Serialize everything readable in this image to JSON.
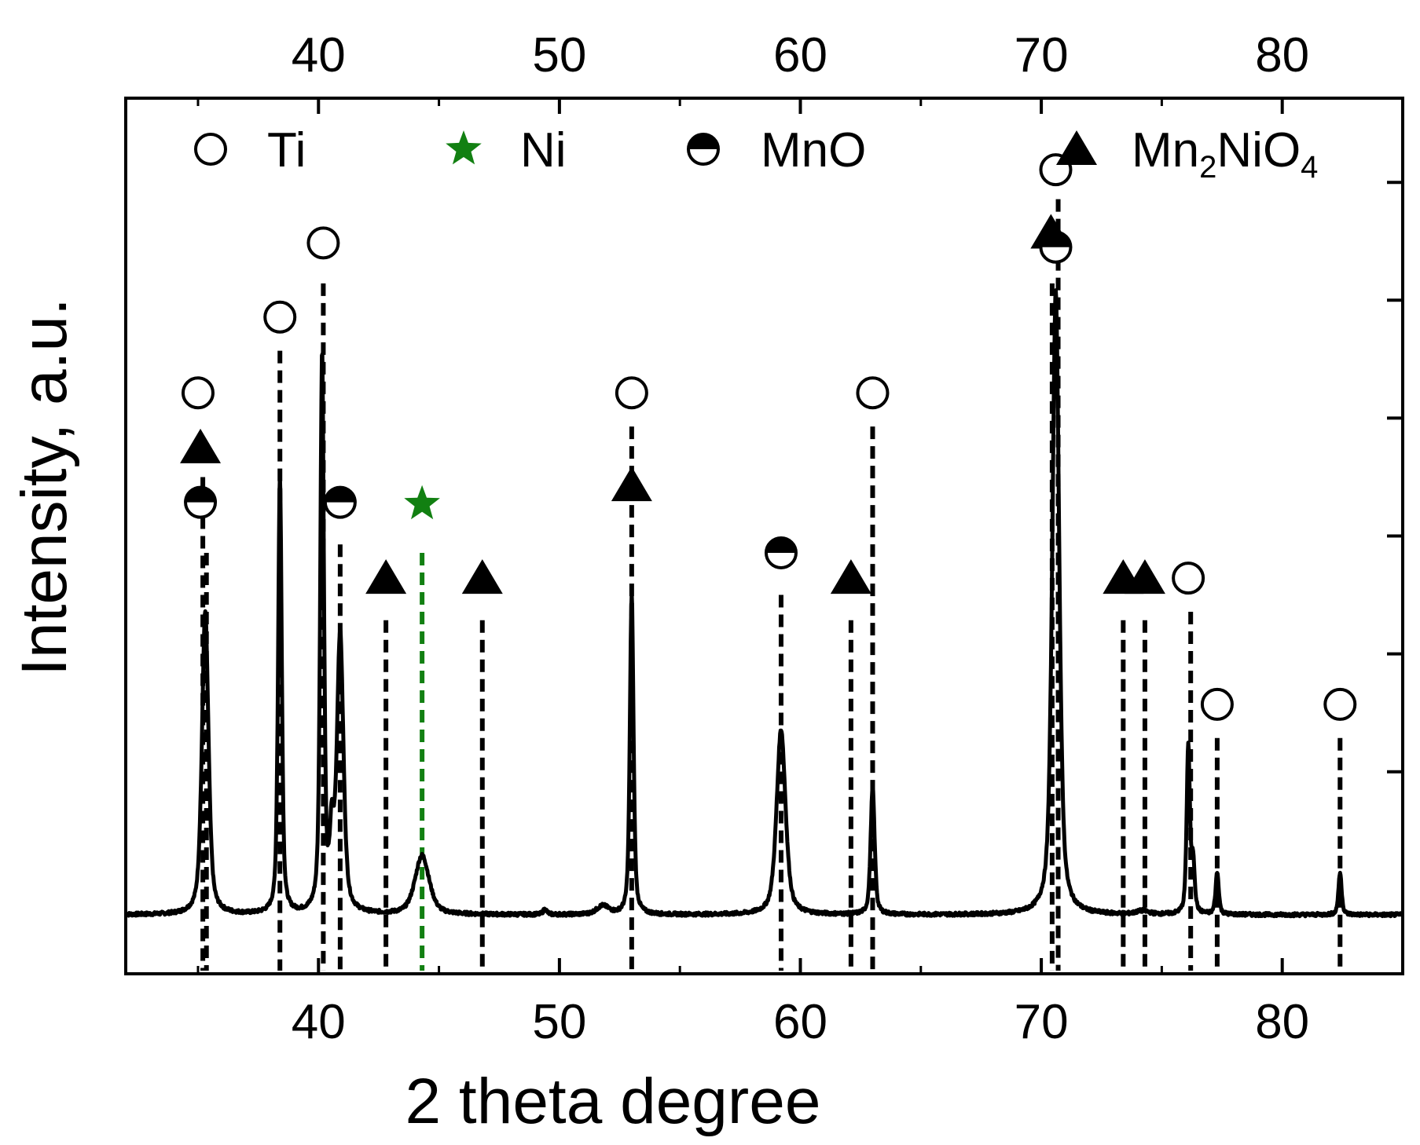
{
  "chart_data": {
    "type": "line",
    "title": "",
    "xlabel": "2 theta degree",
    "ylabel": "Intensity, a.u.",
    "xlim": [
      32,
      85
    ],
    "ylim": [
      -0.04,
      1.0
    ],
    "x_ticks": [
      40,
      50,
      60,
      70,
      80
    ],
    "x_tick_labels": [
      "40",
      "50",
      "60",
      "70",
      "80"
    ],
    "y_minor_ticks": [
      0.2,
      0.34,
      0.48,
      0.62,
      0.76,
      0.9
    ],
    "line_color": "#000000",
    "baseline": 0.03,
    "peaks": [
      {
        "x": 35.3,
        "h": 0.36,
        "w": 0.16
      },
      {
        "x": 38.4,
        "h": 0.52,
        "w": 0.09
      },
      {
        "x": 40.15,
        "h": 0.66,
        "w": 0.09
      },
      {
        "x": 40.55,
        "h": 0.08,
        "w": 0.1
      },
      {
        "x": 40.9,
        "h": 0.33,
        "w": 0.16
      },
      {
        "x": 44.3,
        "h": 0.07,
        "w": 0.35
      },
      {
        "x": 49.4,
        "h": 0.006,
        "w": 0.1
      },
      {
        "x": 51.8,
        "h": 0.01,
        "w": 0.3
      },
      {
        "x": 53.0,
        "h": 0.38,
        "w": 0.09
      },
      {
        "x": 59.2,
        "h": 0.22,
        "w": 0.22
      },
      {
        "x": 63.0,
        "h": 0.15,
        "w": 0.1
      },
      {
        "x": 70.6,
        "h": 0.74,
        "w": 0.17
      },
      {
        "x": 74.2,
        "h": 0.004,
        "w": 0.3
      },
      {
        "x": 76.1,
        "h": 0.2,
        "w": 0.08
      },
      {
        "x": 76.3,
        "h": 0.06,
        "w": 0.08
      },
      {
        "x": 77.3,
        "h": 0.05,
        "w": 0.08
      },
      {
        "x": 82.4,
        "h": 0.05,
        "w": 0.08
      }
    ],
    "legend": [
      {
        "symbol": "circle-open",
        "label": "Ti",
        "color": "#000000"
      },
      {
        "symbol": "star",
        "label": "Ni",
        "color": "#128012"
      },
      {
        "symbol": "circle-half",
        "label": "MnO",
        "color": "#000000"
      },
      {
        "symbol": "triangle",
        "label": "Mn",
        "sub1": "2",
        "mid": "NiO",
        "sub2": "4",
        "color": "#000000"
      }
    ],
    "reference_lines": [
      {
        "x": 35.2,
        "top": 0.55,
        "color": "#000000"
      },
      {
        "x": 35.35,
        "top": 0.46,
        "color": "#000000"
      },
      {
        "x": 38.4,
        "top": 0.7,
        "color": "#000000"
      },
      {
        "x": 40.2,
        "top": 0.78,
        "color": "#000000"
      },
      {
        "x": 40.9,
        "top": 0.47,
        "color": "#000000"
      },
      {
        "x": 42.8,
        "top": 0.38,
        "color": "#000000"
      },
      {
        "x": 44.3,
        "top": 0.46,
        "color": "#128012"
      },
      {
        "x": 46.8,
        "top": 0.38,
        "color": "#000000"
      },
      {
        "x": 53.0,
        "top": 0.61,
        "color": "#000000"
      },
      {
        "x": 59.2,
        "top": 0.41,
        "color": "#000000"
      },
      {
        "x": 62.1,
        "top": 0.38,
        "color": "#000000"
      },
      {
        "x": 63.0,
        "top": 0.61,
        "color": "#000000"
      },
      {
        "x": 70.45,
        "top": 0.78,
        "color": "#000000"
      },
      {
        "x": 70.7,
        "top": 0.88,
        "color": "#000000"
      },
      {
        "x": 73.4,
        "top": 0.38,
        "color": "#000000"
      },
      {
        "x": 74.3,
        "top": 0.38,
        "color": "#000000"
      },
      {
        "x": 76.2,
        "top": 0.39,
        "color": "#000000"
      },
      {
        "x": 77.3,
        "top": 0.24,
        "color": "#000000"
      },
      {
        "x": 82.4,
        "top": 0.24,
        "color": "#000000"
      }
    ],
    "markers": [
      {
        "x": 35.0,
        "y": 0.65,
        "symbol": "circle-open"
      },
      {
        "x": 35.1,
        "y": 0.52,
        "symbol": "circle-half"
      },
      {
        "x": 35.1,
        "y": 0.585,
        "symbol": "triangle"
      },
      {
        "x": 38.4,
        "y": 0.74,
        "symbol": "circle-open"
      },
      {
        "x": 40.2,
        "y": 0.828,
        "symbol": "circle-open"
      },
      {
        "x": 40.9,
        "y": 0.52,
        "symbol": "circle-half"
      },
      {
        "x": 42.8,
        "y": 0.43,
        "symbol": "triangle"
      },
      {
        "x": 44.3,
        "y": 0.518,
        "symbol": "star"
      },
      {
        "x": 46.8,
        "y": 0.43,
        "symbol": "triangle"
      },
      {
        "x": 53.0,
        "y": 0.65,
        "symbol": "circle-open"
      },
      {
        "x": 53.0,
        "y": 0.54,
        "symbol": "triangle"
      },
      {
        "x": 59.2,
        "y": 0.46,
        "symbol": "circle-half"
      },
      {
        "x": 62.1,
        "y": 0.43,
        "symbol": "triangle"
      },
      {
        "x": 63.0,
        "y": 0.65,
        "symbol": "circle-open"
      },
      {
        "x": 70.6,
        "y": 0.915,
        "symbol": "circle-open"
      },
      {
        "x": 70.4,
        "y": 0.84,
        "symbol": "triangle"
      },
      {
        "x": 70.6,
        "y": 0.823,
        "symbol": "circle-half"
      },
      {
        "x": 73.4,
        "y": 0.43,
        "symbol": "triangle"
      },
      {
        "x": 74.3,
        "y": 0.43,
        "symbol": "triangle"
      },
      {
        "x": 76.1,
        "y": 0.43,
        "symbol": "circle-open"
      },
      {
        "x": 77.3,
        "y": 0.28,
        "symbol": "circle-open"
      },
      {
        "x": 82.4,
        "y": 0.28,
        "symbol": "circle-open"
      }
    ]
  }
}
